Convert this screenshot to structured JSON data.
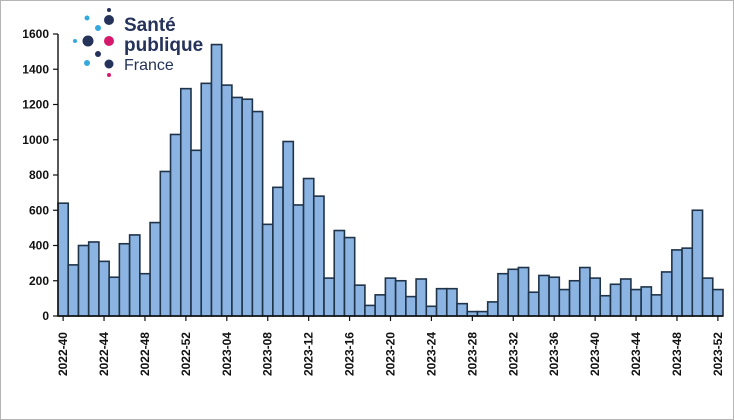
{
  "logo": {
    "line1": "Santé",
    "line2": "publique",
    "line3": "France"
  },
  "colors": {
    "bar_fill": "#8cb4e2",
    "bar_stroke": "#1f3349",
    "axis": "#111111",
    "logo_dark_blue": "#25325a",
    "logo_light_blue": "#35a9dd",
    "logo_magenta": "#d6196c"
  },
  "chart_data": {
    "type": "bar",
    "title": "",
    "xlabel": "",
    "ylabel": "",
    "ylim": [
      0,
      1600
    ],
    "y_ticks": [
      0,
      200,
      400,
      600,
      800,
      1000,
      1200,
      1400,
      1600
    ],
    "grid": false,
    "x_tick_labels": [
      "2022-40",
      "2022-44",
      "2022-48",
      "2022-52",
      "2023-04",
      "2023-08",
      "2023-12",
      "2023-16",
      "2023-20",
      "2023-24",
      "2023-28",
      "2023-32",
      "2023-36",
      "2023-40",
      "2023-44",
      "2023-48",
      "2023-52"
    ],
    "categories": [
      "2022-40",
      "2022-41",
      "2022-42",
      "2022-43",
      "2022-44",
      "2022-45",
      "2022-46",
      "2022-47",
      "2022-48",
      "2022-49",
      "2022-50",
      "2022-51",
      "2022-52",
      "2023-01",
      "2023-02",
      "2023-03",
      "2023-04",
      "2023-05",
      "2023-06",
      "2023-07",
      "2023-08",
      "2023-09",
      "2023-10",
      "2023-11",
      "2023-12",
      "2023-13",
      "2023-14",
      "2023-15",
      "2023-16",
      "2023-17",
      "2023-18",
      "2023-19",
      "2023-20",
      "2023-21",
      "2023-22",
      "2023-23",
      "2023-24",
      "2023-25",
      "2023-26",
      "2023-27",
      "2023-28",
      "2023-29",
      "2023-30",
      "2023-31",
      "2023-32",
      "2023-33",
      "2023-34",
      "2023-35",
      "2023-36",
      "2023-37",
      "2023-38",
      "2023-39",
      "2023-40",
      "2023-41",
      "2023-42",
      "2023-43",
      "2023-44",
      "2023-45",
      "2023-46",
      "2023-47",
      "2023-48",
      "2023-49",
      "2023-50",
      "2023-51",
      "2023-52"
    ],
    "values": [
      640,
      290,
      400,
      420,
      310,
      220,
      410,
      460,
      240,
      530,
      820,
      1030,
      1290,
      940,
      1320,
      1540,
      1310,
      1240,
      1230,
      1160,
      520,
      730,
      990,
      630,
      780,
      680,
      215,
      485,
      445,
      175,
      60,
      120,
      215,
      200,
      110,
      210,
      55,
      155,
      155,
      70,
      25,
      25,
      80,
      240,
      265,
      275,
      135,
      230,
      220,
      150,
      200,
      275,
      215,
      115,
      180,
      210,
      150,
      165,
      120,
      250,
      375,
      385,
      600,
      215,
      150
    ]
  }
}
